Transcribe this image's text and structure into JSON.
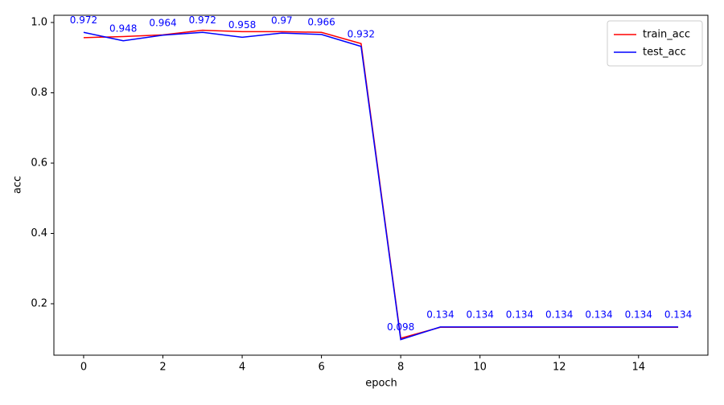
{
  "chart_data": {
    "type": "line",
    "x_label": "epoch",
    "y_label": "acc",
    "x": [
      0,
      1,
      2,
      3,
      4,
      5,
      6,
      7,
      8,
      9,
      10,
      11,
      12,
      13,
      14,
      15
    ],
    "series": [
      {
        "name": "train_acc",
        "color": "#ff0000",
        "values": [
          0.957,
          0.96,
          0.965,
          0.978,
          0.974,
          0.974,
          0.972,
          0.94,
          0.102,
          0.133,
          0.133,
          0.133,
          0.133,
          0.133,
          0.133,
          0.133
        ]
      },
      {
        "name": "test_acc",
        "color": "#0000ff",
        "values": [
          0.972,
          0.948,
          0.964,
          0.972,
          0.958,
          0.97,
          0.966,
          0.932,
          0.098,
          0.134,
          0.134,
          0.134,
          0.134,
          0.134,
          0.134,
          0.134
        ],
        "show_value_labels": true
      }
    ],
    "xlim": [
      -0.75,
      15.75
    ],
    "ylim": [
      0.0537,
      1.0206
    ],
    "xticks": [
      0,
      2,
      4,
      6,
      8,
      10,
      12,
      14
    ],
    "yticks": [
      0.2,
      0.4,
      0.6,
      0.8,
      {
        "value": 1,
        "label": "1.0"
      }
    ],
    "legend": "upper right"
  }
}
